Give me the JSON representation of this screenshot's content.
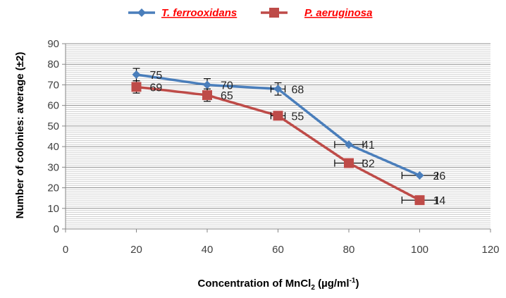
{
  "chart_data": {
    "type": "line",
    "title": "",
    "xlabel_main": "Concentration of  MnCl",
    "xlabel_sub": "2",
    "xlabel_units": "  (µg/ml",
    "xlabel_sup": "-1",
    "xlabel_close": ")",
    "ylabel": "Number  of colonies: average (±2)",
    "xlim": [
      0,
      120
    ],
    "ylim": [
      0,
      90
    ],
    "xticks": [
      0,
      20,
      40,
      60,
      80,
      100,
      120
    ],
    "yticks": [
      0,
      10,
      20,
      30,
      40,
      50,
      60,
      70,
      80,
      90
    ],
    "grid": true,
    "legend_position": "top-center",
    "series": [
      {
        "name": "T. ferrooxidans",
        "color": "#4a7ebb",
        "marker": "diamond",
        "x": [
          20,
          40,
          60,
          80,
          100
        ],
        "y": [
          75,
          70,
          68,
          41,
          26
        ],
        "labels": [
          "75",
          "70",
          "68",
          "41",
          "26"
        ],
        "yerr": [
          3,
          3,
          3,
          0,
          0
        ],
        "xerr": [
          0,
          0,
          2,
          4,
          5
        ]
      },
      {
        "name": "P. aeruginosa",
        "color": "#be4b48",
        "marker": "square",
        "x": [
          20,
          40,
          60,
          80,
          100
        ],
        "y": [
          69,
          65,
          55,
          32,
          14
        ],
        "labels": [
          "69",
          "65",
          "55",
          "32",
          "14"
        ],
        "yerr": [
          3,
          3,
          0,
          0,
          0
        ],
        "xerr": [
          0,
          0,
          2,
          4,
          5
        ]
      }
    ]
  }
}
